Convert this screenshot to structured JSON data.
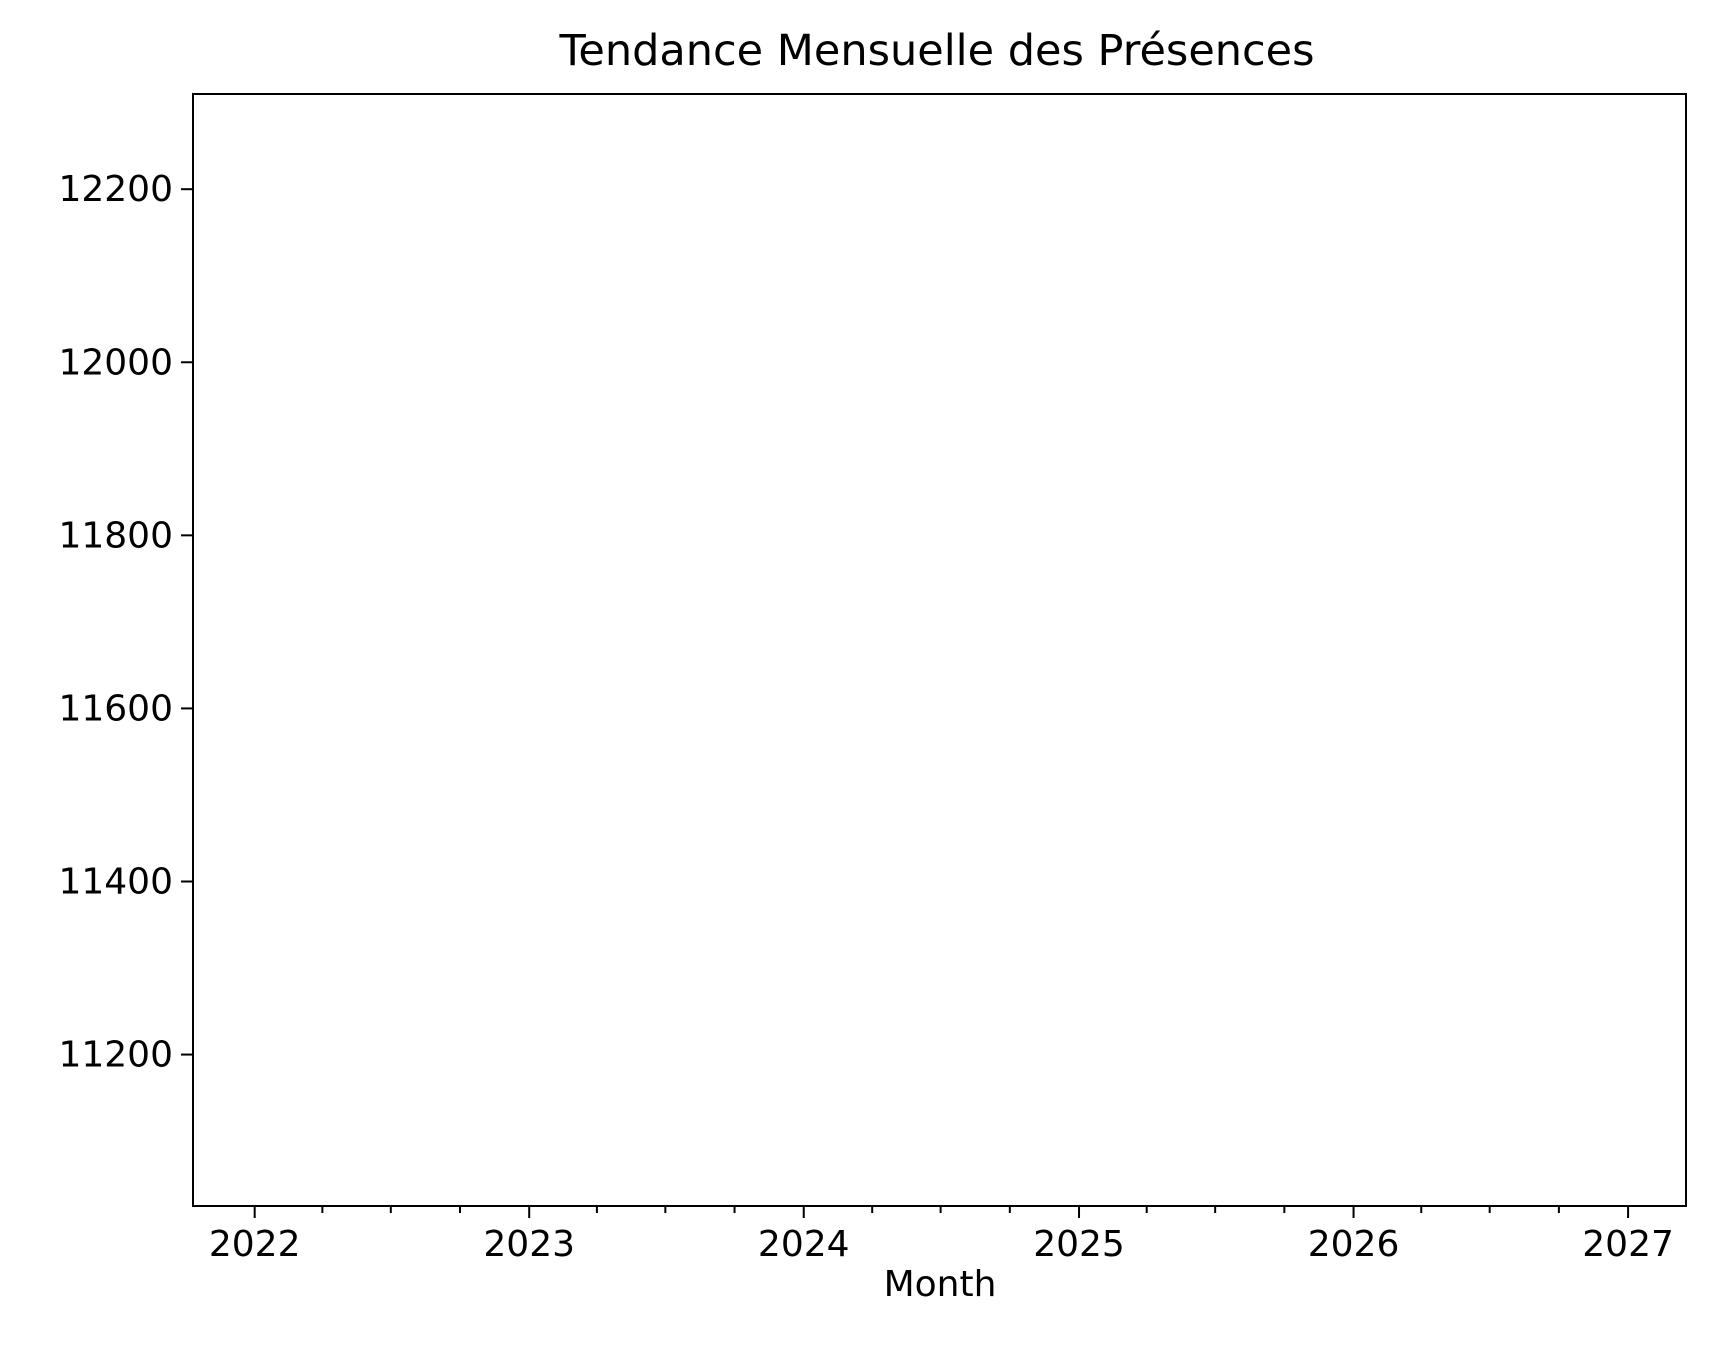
{
  "chart_data": {
    "type": "line",
    "title": "Tendance Mensuelle des Présences",
    "xlabel": "Month",
    "ylabel": "",
    "x_axis_kind": "date",
    "xlim": [
      "2021-10-11",
      "2027-03-19"
    ],
    "ylim": [
      11025,
      12310
    ],
    "x_major_ticks": [
      "2022-01-01",
      "2023-01-01",
      "2024-01-01",
      "2025-01-01",
      "2026-01-01",
      "2027-01-01"
    ],
    "x_tick_labels": [
      "2022",
      "2023",
      "2024",
      "2025",
      "2026",
      "2027"
    ],
    "x_minor_ticks_per_year": 4,
    "y_ticks": [
      11200,
      11400,
      11600,
      11800,
      12000,
      12200
    ],
    "y_tick_labels": [
      "11200",
      "11400",
      "11600",
      "11800",
      "12000",
      "12200"
    ],
    "grid": false,
    "legend": "none",
    "series": [],
    "colors": {
      "axes": "#000000",
      "background": "#ffffff"
    }
  }
}
